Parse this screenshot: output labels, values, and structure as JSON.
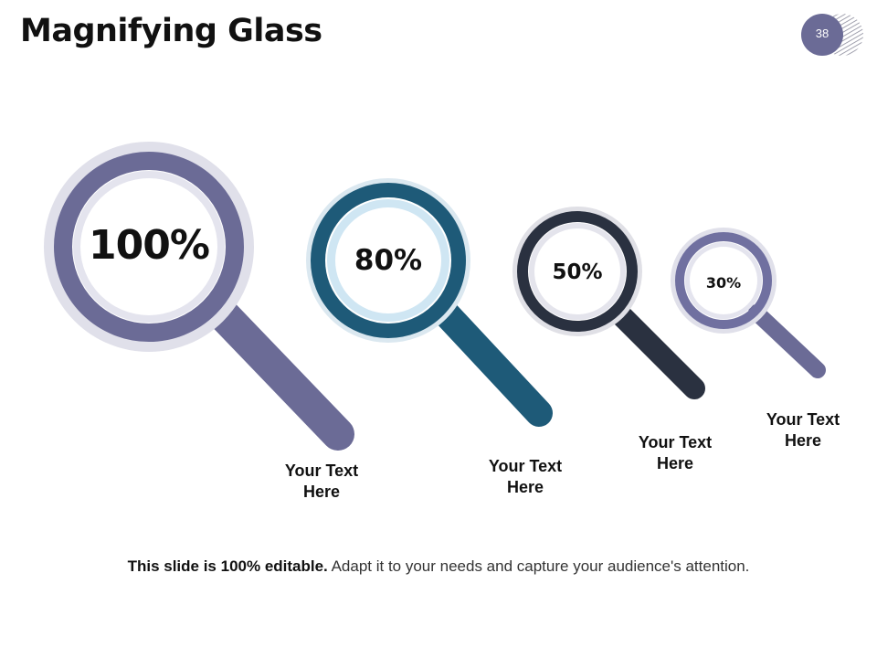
{
  "slide": {
    "title": "Magnifying Glass",
    "page_number": "38"
  },
  "colors": {
    "purple": "#6b6b96",
    "teal": "#1e5a78",
    "dark": "#2a3140",
    "teal_ring": "#cfe6f3",
    "light_ring": "#e2e2ec"
  },
  "glasses": [
    {
      "value": "100%",
      "caption_line1": "Your Text",
      "caption_line2": "Here",
      "color": "#6b6b96"
    },
    {
      "value": "80%",
      "caption_line1": "Your Text",
      "caption_line2": "Here",
      "color": "#1e5a78"
    },
    {
      "value": "50%",
      "caption_line1": "Your Text",
      "caption_line2": "Here",
      "color": "#2a3140"
    },
    {
      "value": "30%",
      "caption_line1": "Your Text",
      "caption_line2": "Here",
      "color": "#6b6b96"
    }
  ],
  "footer": {
    "bold": "This slide is 100% editable.",
    "text": "Adapt it to your needs and capture your audience's attention."
  }
}
